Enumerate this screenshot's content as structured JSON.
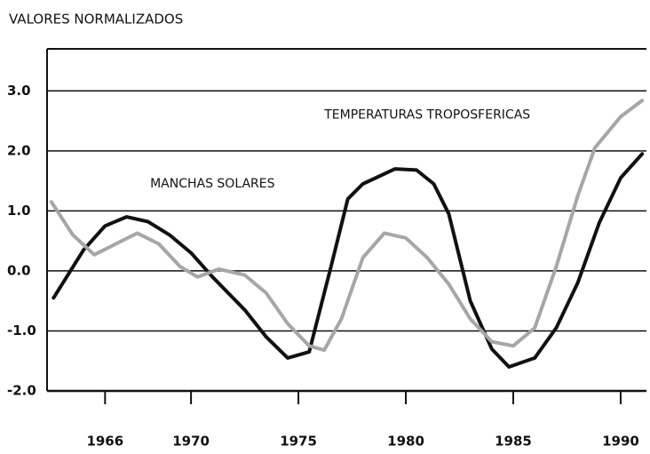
{
  "chart_data": {
    "type": "line",
    "title": "VALORES NORMALIZADOS",
    "xlim": [
      1963.3,
      1991.2
    ],
    "xticks": [
      1966,
      1970,
      1975,
      1980,
      1985,
      1990
    ],
    "ylim": [
      -2,
      3.7
    ],
    "yticks": [
      {
        "value": 3,
        "label": "3.0"
      },
      {
        "value": 2,
        "label": "2.0"
      },
      {
        "value": 1,
        "label": "1.0"
      },
      {
        "value": 0,
        "label": "0.0"
      },
      {
        "value": -1,
        "label": "-1.0"
      },
      {
        "value": -2,
        "label": "-2.0"
      }
    ],
    "grid": true,
    "series": [
      {
        "name": "MANCHAS SOLARES",
        "color": "#111111",
        "x": [
          1963.6,
          1965,
          1966,
          1967,
          1968,
          1969,
          1970,
          1971,
          1972.5,
          1973.5,
          1974.5,
          1975.5,
          1976.5,
          1977.3,
          1978,
          1979.5,
          1980.5,
          1981.3,
          1982,
          1983,
          1984,
          1984.8,
          1986,
          1987,
          1988,
          1989,
          1990,
          1991
        ],
        "values": [
          -0.45,
          0.35,
          0.75,
          0.9,
          0.82,
          0.6,
          0.3,
          -0.1,
          -0.65,
          -1.1,
          -1.45,
          -1.35,
          0.05,
          1.2,
          1.45,
          1.7,
          1.68,
          1.45,
          0.95,
          -0.5,
          -1.3,
          -1.6,
          -1.45,
          -0.95,
          -0.2,
          0.8,
          1.55,
          1.95
        ]
      },
      {
        "name": "TEMPERATURAS TROPOSFERICAS",
        "color": "#a6a6a6",
        "x": [
          1963.5,
          1964.5,
          1965.5,
          1966.5,
          1967.5,
          1968.5,
          1969.5,
          1970.3,
          1971.3,
          1972.5,
          1973.5,
          1974.5,
          1975.5,
          1976.2,
          1977,
          1978,
          1979,
          1980,
          1981,
          1982,
          1983,
          1984,
          1985,
          1986,
          1987,
          1988,
          1988.8,
          1990,
          1991
        ],
        "values": [
          1.15,
          0.6,
          0.27,
          0.45,
          0.63,
          0.45,
          0.07,
          -0.1,
          0.03,
          -0.07,
          -0.37,
          -0.88,
          -1.25,
          -1.32,
          -0.8,
          0.22,
          0.63,
          0.55,
          0.22,
          -0.22,
          -0.8,
          -1.18,
          -1.25,
          -0.95,
          0.07,
          1.25,
          2.05,
          2.57,
          2.84
        ]
      }
    ],
    "annotations": [
      {
        "text_path": 1,
        "x": 1981,
        "y": 2.6
      },
      {
        "text_path": 0,
        "x": 1971,
        "y": 1.45
      }
    ]
  }
}
